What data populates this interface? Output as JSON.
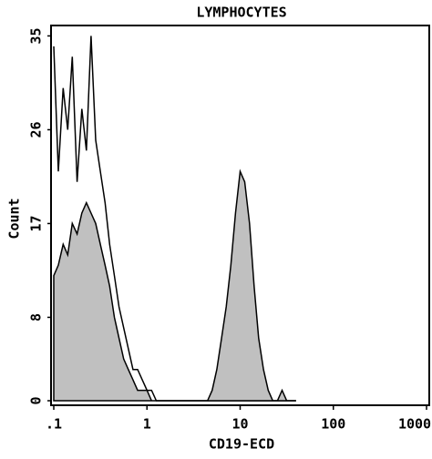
{
  "chart_data": {
    "type": "histogram-overlay",
    "title": "LYMPHOCYTES",
    "xlabel": "CD19-ECD",
    "ylabel": "Count",
    "xscale": "log",
    "xlim": [
      0.1,
      1000
    ],
    "ylim": [
      0,
      36
    ],
    "xticks": [
      {
        "value": 0.1,
        "label": ".1"
      },
      1,
      10,
      100,
      1000
    ],
    "yticks": [
      0,
      8,
      17,
      26,
      35
    ],
    "x": [
      0.1,
      0.112,
      0.126,
      0.141,
      0.158,
      0.178,
      0.2,
      0.224,
      0.251,
      0.282,
      0.316,
      0.355,
      0.398,
      0.447,
      0.501,
      0.562,
      0.631,
      0.708,
      0.794,
      0.891,
      1,
      1.12,
      1.26,
      1.41,
      1.58,
      1.78,
      2,
      2.24,
      2.51,
      2.82,
      3.16,
      3.55,
      3.98,
      4.47,
      5.01,
      5.62,
      6.31,
      7.08,
      7.94,
      8.91,
      10,
      11.2,
      12.6,
      14.1,
      15.8,
      17.8,
      20,
      22.4,
      25.1,
      28.2,
      31.6,
      35.5,
      39.8
    ],
    "series": [
      {
        "color": "#ffffff",
        "filled": false,
        "values": [
          34,
          22,
          30,
          26,
          33,
          21,
          28,
          24,
          35,
          25,
          22,
          19,
          15,
          12,
          9,
          7,
          5,
          3,
          3,
          2,
          1,
          1,
          0,
          0,
          0,
          0,
          0,
          0,
          0,
          0,
          0,
          0,
          0,
          0,
          0,
          0,
          0,
          0,
          0,
          0,
          0,
          0,
          0,
          0,
          0,
          0,
          0,
          0,
          0,
          0,
          0,
          0,
          0
        ]
      },
      {
        "color": "#c0c0c0",
        "filled": true,
        "values": [
          12,
          13,
          15,
          14,
          17,
          16,
          18,
          19,
          18,
          17,
          15,
          13,
          11,
          8,
          6,
          4,
          3,
          2,
          1,
          1,
          1,
          0,
          0,
          0,
          0,
          0,
          0,
          0,
          0,
          0,
          0,
          0,
          0,
          0,
          1,
          3,
          6,
          9,
          13,
          18,
          22,
          21,
          17,
          11,
          6,
          3,
          1,
          0,
          0,
          1,
          0,
          0,
          0
        ]
      }
    ]
  }
}
